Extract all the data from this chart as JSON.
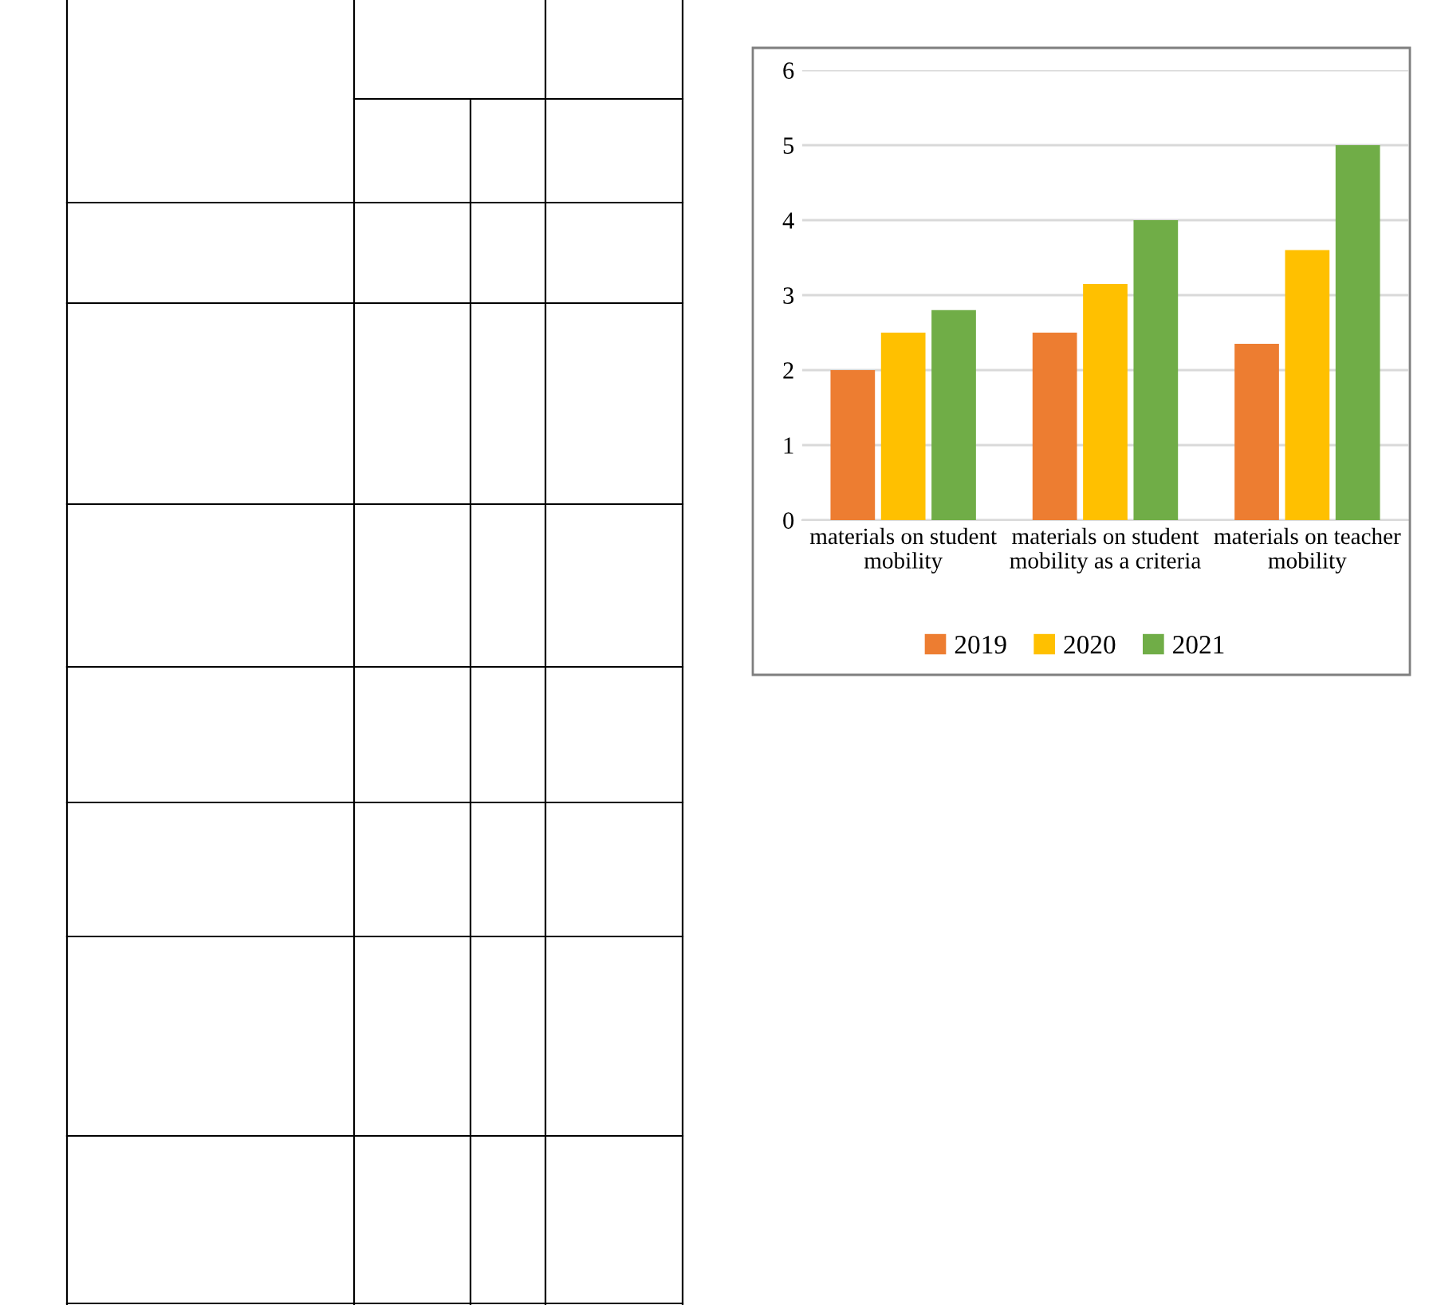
{
  "chart_data": {
    "type": "bar",
    "categories": [
      "materials on student\nmobility",
      "materials on student\nmobility as a criteria",
      "materials on teacher\nmobility"
    ],
    "series": [
      {
        "name": "2019",
        "color": "#ed7d31",
        "values": [
          2,
          2.5,
          2.35
        ]
      },
      {
        "name": "2020",
        "color": "#ffc000",
        "values": [
          2.5,
          3.15,
          3.6
        ]
      },
      {
        "name": "2021",
        "color": "#70ad47",
        "values": [
          2.8,
          4,
          5
        ]
      }
    ],
    "ylim": [
      0,
      6
    ],
    "yticks": [
      0,
      1,
      2,
      3,
      4,
      5,
      6
    ],
    "grid": "y",
    "legend": "bottom"
  }
}
